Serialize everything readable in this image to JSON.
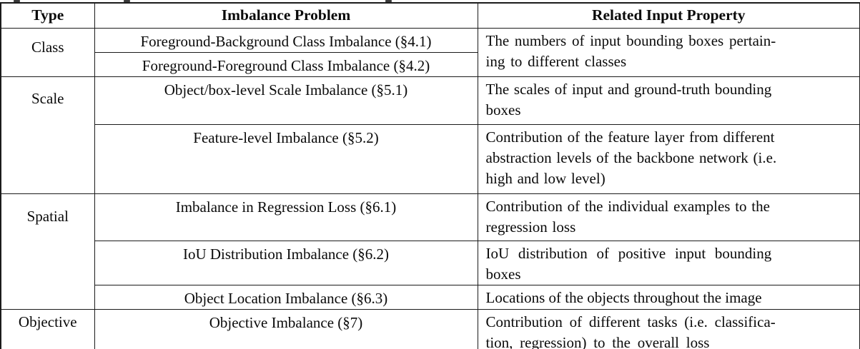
{
  "table": {
    "headers": [
      "Type",
      "Imbalance Problem",
      "Related Input Property"
    ],
    "rows": [
      {
        "type": "Class",
        "type_rowspan": 2,
        "problem": "Foreground-Background Class Imbalance (§4.1)",
        "property": "The numbers of input bounding boxes pertain-\ning to different classes",
        "property_rowspan": 2
      },
      {
        "problem": "Foreground-Foreground Class Imbalance (§4.2)"
      },
      {
        "type": "Scale",
        "type_rowspan": 2,
        "problem": "Object/box-level Scale Imbalance (§5.1)",
        "property": "The scales of input and ground-truth bounding\nboxes"
      },
      {
        "problem": "Feature-level Imbalance (§5.2)",
        "property": "Contribution of the feature layer from different\nabstraction levels of the backbone network (i.e.\nhigh and low level)"
      },
      {
        "type": "Spatial",
        "type_rowspan": 3,
        "problem": "Imbalance in Regression Loss (§6.1)",
        "property": "Contribution of the individual examples to the\nregression loss"
      },
      {
        "problem": "IoU Distribution Imbalance (§6.2)",
        "property": "IoU distribution of positive input bounding\nboxes"
      },
      {
        "problem": "Object Location Imbalance (§6.3)",
        "property": "Locations of the objects throughout the image"
      },
      {
        "type": "Objective",
        "type_rowspan": 1,
        "problem": "Objective Imbalance (§7)",
        "property": "Contribution of different tasks (i.e. classifica-\ntion, regression) to the overall loss"
      }
    ]
  }
}
